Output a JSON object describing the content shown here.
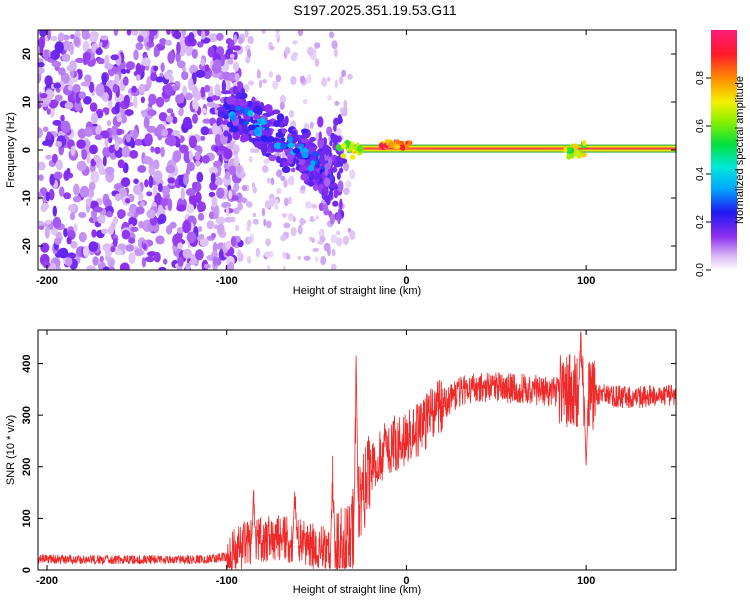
{
  "title": "S197.2025.351.19.53.G11",
  "colors": {
    "snr_line": "#ee2a2a",
    "axis": "#000000",
    "carrier_peak": "#ff2a55"
  },
  "chart_data": [
    {
      "type": "heatmap",
      "title": "S197.2025.351.19.53.G11",
      "xlabel": "Height of straight line (km)",
      "ylabel": "Frequency (Hz)",
      "xlim": [
        -205,
        150
      ],
      "ylim": [
        -25,
        25
      ],
      "xticks": [
        -200,
        -100,
        0,
        100
      ],
      "yticks": [
        -20,
        -10,
        0,
        10,
        20
      ],
      "colorbar": {
        "label": "Normalized spectral amplitude",
        "range": [
          0,
          1
        ],
        "ticks": [
          "0.0",
          "0.2",
          "0.4",
          "0.6",
          "0.8"
        ],
        "colormap": "white-violet-blue-cyan-green-yellow-red-magenta"
      },
      "features": {
        "noise_region_km": [
          -205,
          -100
        ],
        "diagonal_streak": {
          "from": [
            -100,
            9
          ],
          "to": [
            -40,
            -5
          ]
        },
        "carrier_line_from_km": -33,
        "carrier_frequency_hz": 0.3,
        "carrier_bump": {
          "km": [
            -15,
            2
          ],
          "hz": 1.5
        }
      }
    },
    {
      "type": "line",
      "xlabel": "Height of straight line (km)",
      "ylabel": "SNR (10 * v/v)",
      "xlim": [
        -205,
        150
      ],
      "ylim": [
        0,
        465
      ],
      "xticks": [
        -200,
        -100,
        0,
        100
      ],
      "yticks": [
        0,
        100,
        200,
        300,
        400
      ],
      "series": [
        {
          "name": "SNR",
          "x": [
            -205,
            -190,
            -170,
            -150,
            -130,
            -110,
            -100,
            -90,
            -80,
            -70,
            -60,
            -50,
            -40,
            -35,
            -30,
            -25,
            -20,
            -10,
            0,
            10,
            20,
            30,
            40,
            50,
            60,
            70,
            80,
            90,
            95,
            100,
            110,
            120,
            130,
            140,
            150
          ],
          "y": [
            22,
            20,
            20,
            20,
            20,
            21,
            26,
            50,
            60,
            62,
            55,
            45,
            35,
            40,
            80,
            150,
            200,
            240,
            255,
            285,
            320,
            345,
            355,
            355,
            352,
            350,
            345,
            345,
            340,
            340,
            340,
            335,
            335,
            338,
            340
          ]
        }
      ],
      "annotations": {
        "spikes": [
          {
            "x": -85,
            "y": 160
          },
          {
            "x": -62,
            "y": 170
          },
          {
            "x": -28,
            "y": 420
          },
          {
            "x": -41,
            "y": 230
          },
          {
            "x": 97,
            "y": 470
          },
          {
            "x": 100,
            "y": 200
          }
        ]
      }
    }
  ]
}
